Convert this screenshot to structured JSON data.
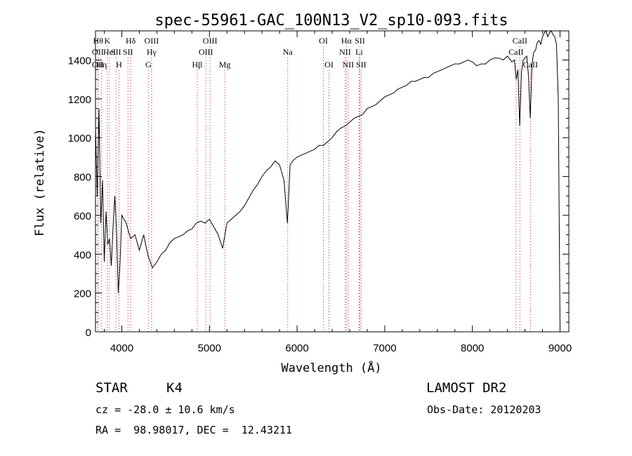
{
  "chart_data": {
    "type": "line",
    "title": "spec-55961-GAC_100N13_V2_sp10-093.fits",
    "xlabel": "Wavelength (Å)",
    "ylabel": "Flux (relative)",
    "xlim": [
      3700,
      9100
    ],
    "ylim": [
      0,
      1550
    ],
    "xticks": [
      "4000",
      "5000",
      "6000",
      "7000",
      "8000",
      "9000"
    ],
    "xtick_values": [
      4000,
      5000,
      6000,
      7000,
      8000,
      9000
    ],
    "yticks": [
      "0",
      "200",
      "400",
      "600",
      "800",
      "1000",
      "1200",
      "1400"
    ],
    "ytick_values": [
      0,
      200,
      400,
      600,
      800,
      1000,
      1200,
      1400
    ],
    "grid": false,
    "series": [
      {
        "x": [
          3700,
          3720,
          3740,
          3760,
          3780,
          3800,
          3820,
          3840,
          3860,
          3880,
          3900,
          3920,
          3940,
          3960,
          3980,
          4000,
          4050,
          4100,
          4150,
          4200,
          4250,
          4300,
          4350,
          4400,
          4450,
          4500,
          4550,
          4600,
          4650,
          4700,
          4750,
          4800,
          4850,
          4900,
          4950,
          5000,
          5050,
          5100,
          5150,
          5200,
          5250,
          5300,
          5350,
          5400,
          5450,
          5500,
          5550,
          5600,
          5650,
          5700,
          5750,
          5800,
          5850,
          5890,
          5920,
          5950,
          6000,
          6050,
          6100,
          6150,
          6200,
          6250,
          6300,
          6350,
          6400,
          6450,
          6500,
          6550,
          6600,
          6650,
          6700,
          6750,
          6800,
          6850,
          6900,
          6950,
          7000,
          7050,
          7100,
          7150,
          7200,
          7250,
          7300,
          7350,
          7400,
          7450,
          7500,
          7550,
          7600,
          7650,
          7700,
          7750,
          7800,
          7850,
          7900,
          7950,
          8000,
          8050,
          8100,
          8150,
          8200,
          8250,
          8300,
          8350,
          8400,
          8450,
          8480,
          8500,
          8520,
          8540,
          8560,
          8580,
          8600,
          8620,
          8640,
          8660,
          8680,
          8700,
          8720,
          8740,
          8760,
          8780,
          8800,
          8820,
          8840,
          8860,
          8880,
          8900,
          8920,
          8940,
          8960,
          8980,
          9000
        ],
        "y": [
          1050,
          700,
          1150,
          560,
          780,
          360,
          620,
          450,
          480,
          340,
          540,
          700,
          520,
          200,
          350,
          600,
          560,
          480,
          500,
          420,
          500,
          390,
          330,
          360,
          400,
          420,
          460,
          480,
          490,
          500,
          520,
          530,
          560,
          570,
          560,
          580,
          540,
          500,
          430,
          560,
          580,
          600,
          620,
          650,
          690,
          730,
          760,
          800,
          830,
          850,
          880,
          860,
          780,
          560,
          860,
          880,
          900,
          910,
          920,
          930,
          940,
          960,
          960,
          980,
          1000,
          1030,
          1050,
          1060,
          1080,
          1100,
          1110,
          1120,
          1150,
          1160,
          1170,
          1190,
          1210,
          1220,
          1230,
          1250,
          1260,
          1270,
          1290,
          1290,
          1300,
          1310,
          1310,
          1330,
          1340,
          1350,
          1360,
          1370,
          1380,
          1380,
          1390,
          1400,
          1390,
          1370,
          1380,
          1380,
          1400,
          1410,
          1410,
          1400,
          1420,
          1390,
          1400,
          1300,
          1350,
          1060,
          1340,
          1400,
          1410,
          1420,
          1320,
          1100,
          1380,
          1440,
          1450,
          1490,
          1500,
          1480,
          1520,
          1540,
          1550,
          1520,
          1540,
          1550,
          1530,
          1520,
          1480,
          1200,
          30
        ]
      }
    ],
    "line_labels": [
      {
        "wl": 3730,
        "row": 0,
        "text": "Hθ",
        "line": true
      },
      {
        "wl": 3770,
        "row": 2,
        "text": "Hη",
        "line": true
      },
      {
        "wl": 3727,
        "row": 1,
        "text": "OII",
        "line": true
      },
      {
        "wl": 3727,
        "row": 2,
        "text": "OII",
        "line": false
      },
      {
        "wl": 3835,
        "row": 0,
        "text": "K",
        "line": true
      },
      {
        "wl": 3860,
        "row": 1,
        "text": "HeI",
        "line": true
      },
      {
        "wl": 3934,
        "row": 1,
        "text": "SII",
        "line": true
      },
      {
        "wl": 3968,
        "row": 2,
        "text": "H",
        "line": true
      },
      {
        "wl": 4102,
        "row": 0,
        "text": "Hδ",
        "line": true
      },
      {
        "wl": 4070,
        "row": 1,
        "text": "SII",
        "line": true
      },
      {
        "wl": 4340,
        "row": 0,
        "text": "OIII",
        "line": true
      },
      {
        "wl": 4340,
        "row": 1,
        "text": "Hγ",
        "line": true
      },
      {
        "wl": 4304,
        "row": 2,
        "text": "G",
        "line": true
      },
      {
        "wl": 4861,
        "row": 2,
        "text": "Hβ",
        "line": true
      },
      {
        "wl": 5007,
        "row": 0,
        "text": "OIII",
        "line": true
      },
      {
        "wl": 4959,
        "row": 1,
        "text": "OIII",
        "line": true
      },
      {
        "wl": 5175,
        "row": 2,
        "text": "Mg",
        "line": true
      },
      {
        "wl": 5893,
        "row": 1,
        "text": "Na",
        "line": true
      },
      {
        "wl": 6300,
        "row": 0,
        "text": "OI",
        "line": true
      },
      {
        "wl": 6364,
        "row": 2,
        "text": "OI",
        "line": true
      },
      {
        "wl": 6563,
        "row": 0,
        "text": "Hα",
        "line": true
      },
      {
        "wl": 6548,
        "row": 1,
        "text": "NII",
        "line": true
      },
      {
        "wl": 6583,
        "row": 2,
        "text": "NII",
        "line": true
      },
      {
        "wl": 6716,
        "row": 0,
        "text": "SII",
        "line": true
      },
      {
        "wl": 6708,
        "row": 1,
        "text": "Li",
        "line": true
      },
      {
        "wl": 6731,
        "row": 2,
        "text": "SII",
        "line": true
      },
      {
        "wl": 8542,
        "row": 0,
        "text": "CaII",
        "line": true
      },
      {
        "wl": 8498,
        "row": 1,
        "text": "CaII",
        "line": true
      },
      {
        "wl": 8662,
        "row": 2,
        "text": "CaII",
        "line": true
      }
    ]
  },
  "info": {
    "class_label": "STAR",
    "subclass": "K4",
    "survey": "LAMOST DR2",
    "cz": "cz = -28.0 ± 10.6 km/s",
    "obs_date": "Obs-Date: 20120203",
    "radec": "RA =  98.98017, DEC =  12.43211"
  }
}
